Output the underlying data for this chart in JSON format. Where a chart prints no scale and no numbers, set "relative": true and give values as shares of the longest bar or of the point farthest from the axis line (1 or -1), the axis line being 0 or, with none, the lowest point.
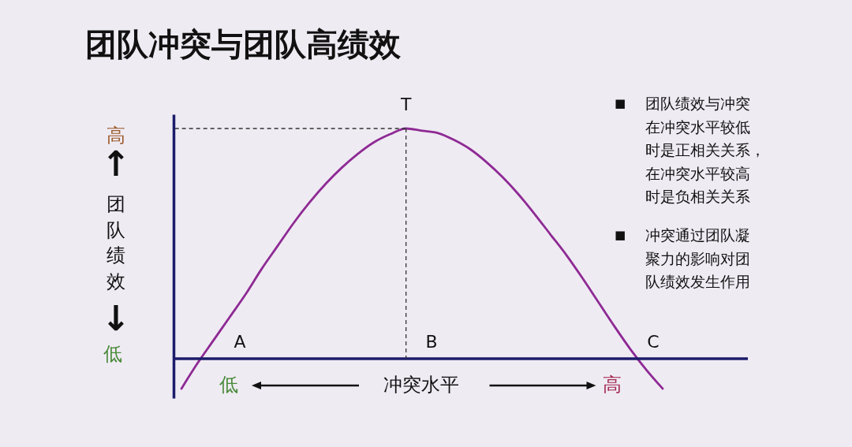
{
  "chart_data": {
    "type": "line",
    "title": "团队冲突与团队高绩效",
    "xlabel": "冲突水平",
    "ylabel": "团队绩效",
    "relative": true,
    "categories": [
      null,
      null,
      null,
      null,
      null,
      null,
      null,
      null,
      null,
      null,
      null,
      null,
      null,
      null,
      null,
      null,
      null,
      null,
      null,
      null,
      null,
      null,
      null,
      null,
      null,
      null,
      null,
      null,
      null,
      null,
      null
    ],
    "series": [
      {
        "color": "#8e2a94",
        "values": [
          -0.13,
          -0.02,
          0.08,
          0.18,
          0.28,
          0.39,
          0.49,
          0.59,
          0.68,
          0.76,
          0.83,
          0.89,
          0.94,
          0.975,
          1,
          0.99,
          0.98,
          0.95,
          0.91,
          0.855,
          0.79,
          0.715,
          0.63,
          0.54,
          0.45,
          0.35,
          0.245,
          0.14,
          0.04,
          -0.05,
          -0.13
        ]
      }
    ],
    "ref_lines": [
      {
        "axis": "y",
        "value": 0,
        "color": "#1c1c6b"
      },
      {
        "axis": "y",
        "value": 1,
        "line_style": "dashed",
        "color": "#333333"
      }
    ],
    "annotations": [
      {
        "text": "T",
        "y": 1
      },
      "A",
      "B",
      "C",
      "高",
      "↑",
      "↓",
      "低",
      "低",
      "高",
      "■",
      "团队绩效与冲突在冲突水平较低时是正相关关系，在冲突水平较高时是负相关关系",
      "■",
      "冲突通过团队凝聚力的影响对团队绩效发生作用"
    ]
  }
}
